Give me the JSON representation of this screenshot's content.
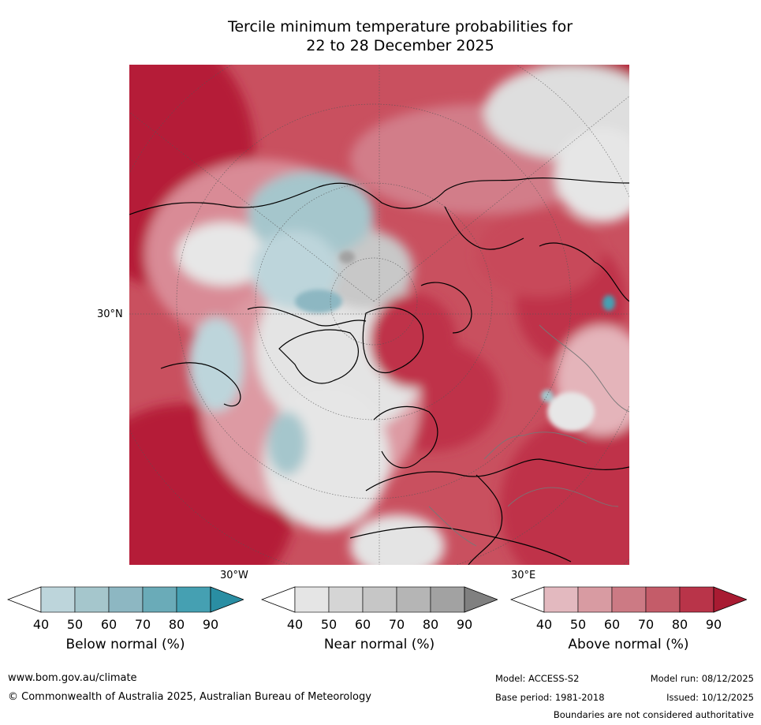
{
  "title": {
    "line1": "Tercile minimum temperature probabilities for",
    "line2": "22 to 28 December 2025"
  },
  "map": {
    "lat_label": "30°N",
    "lon_label_west": "30°W",
    "lon_label_east": "30°E"
  },
  "colorbars": [
    {
      "label": "Below normal (%)",
      "ticks": [
        "40",
        "50",
        "60",
        "70",
        "80",
        "90"
      ],
      "colors": [
        "#ffffff",
        "#bdd5db",
        "#a5c6cc",
        "#8db7c2",
        "#6aabb8",
        "#45a0b2",
        "#2a8ea3"
      ]
    },
    {
      "label": "Near normal (%)",
      "ticks": [
        "40",
        "50",
        "60",
        "70",
        "80",
        "90"
      ],
      "colors": [
        "#ffffff",
        "#e5e5e5",
        "#d5d5d5",
        "#c6c6c6",
        "#b5b5b5",
        "#a2a2a2",
        "#808080"
      ]
    },
    {
      "label": "Above normal (%)",
      "ticks": [
        "40",
        "50",
        "60",
        "70",
        "80",
        "90"
      ],
      "colors": [
        "#ffffff",
        "#e3b9bf",
        "#d89ba2",
        "#cc7a84",
        "#c45c69",
        "#b93449",
        "#a81b32"
      ]
    }
  ],
  "footer": {
    "website": "www.bom.gov.au/climate",
    "copyright": "© Commonwealth of Australia 2025, Australian Bureau of Meteorology",
    "model": "Model: ACCESS-S2",
    "model_run": "Model run: 08/12/2025",
    "base_period": "Base period: 1981-2018",
    "issued": "Issued: 10/12/2025",
    "disclaimer": "Boundaries are not considered authoritative"
  }
}
